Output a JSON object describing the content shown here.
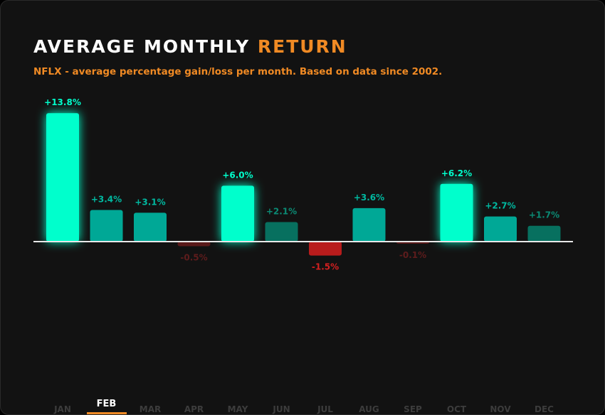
{
  "header": {
    "title_main": "AVERAGE MONTHLY",
    "title_accent": "RETURN",
    "subtitle": "NFLX - average percentage gain/loss per month. Based on data since 2002."
  },
  "colors": {
    "accent": "#f08a24",
    "bright": "#00ffcc",
    "mid": "#00a896",
    "dim": "#07705f",
    "neg_strong": "#b81c1c",
    "neg_dim": "#5a1a1a"
  },
  "tabs": {
    "active": "FEB",
    "items": [
      "JAN",
      "FEB",
      "MAR",
      "APR",
      "MAY",
      "JUN",
      "JUL",
      "AUG",
      "SEP",
      "OCT",
      "NOV",
      "DEC"
    ]
  },
  "chart_data": {
    "type": "bar",
    "categories": [
      "JAN",
      "FEB",
      "MAR",
      "APR",
      "MAY",
      "JUN",
      "JUL",
      "AUG",
      "SEP",
      "OCT",
      "NOV",
      "DEC"
    ],
    "values": [
      13.8,
      3.4,
      3.1,
      -0.5,
      6.0,
      2.1,
      -1.5,
      3.6,
      -0.1,
      6.2,
      2.7,
      1.7
    ],
    "labels": [
      "+13.8%",
      "+3.4%",
      "+3.1%",
      "-0.5%",
      "+6.0%",
      "+2.1%",
      "-1.5%",
      "+3.6%",
      "-0.1%",
      "+6.2%",
      "+2.7%",
      "+1.7%"
    ],
    "intensity": [
      "bright",
      "mid",
      "mid",
      "neg_dim",
      "bright",
      "dim",
      "neg_strong",
      "mid",
      "neg_dim",
      "bright",
      "mid",
      "dim"
    ],
    "title": "AVERAGE MONTHLY RETURN",
    "unit": "%",
    "grid": false
  }
}
